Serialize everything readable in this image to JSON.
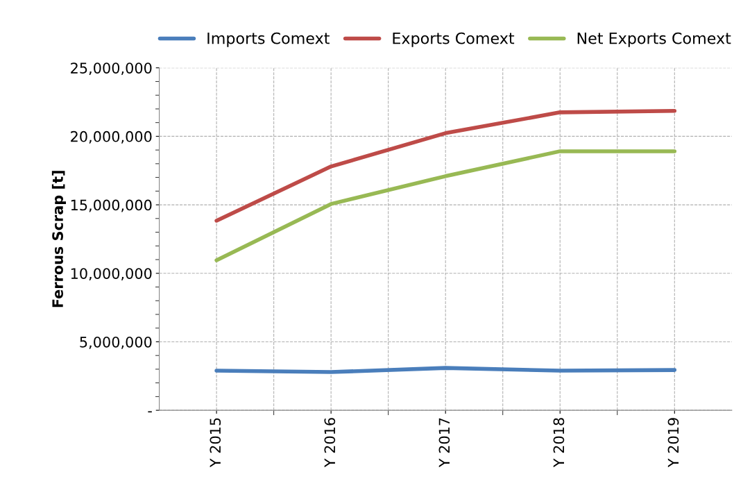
{
  "chart_data": {
    "type": "line",
    "ylabel": "Ferrous Scrap [t]",
    "categories": [
      "Y 2015",
      "Y 2016",
      "Y 2017",
      "Y 2018",
      "Y 2019"
    ],
    "series": [
      {
        "name": "Imports Comext",
        "color": "#4a7ebb",
        "values": [
          2890000,
          2790000,
          3090000,
          2890000,
          2940000
        ]
      },
      {
        "name": "Exports Comext",
        "color": "#be4b48",
        "values": [
          13840000,
          17800000,
          20230000,
          21750000,
          21860000
        ]
      },
      {
        "name": "Net Exports Comext",
        "color": "#98b954",
        "values": [
          10950000,
          15060000,
          17090000,
          18910000,
          18910000
        ]
      }
    ],
    "ylim": [
      0,
      25000000
    ],
    "yticks": [
      {
        "value": 0,
        "label": "-"
      },
      {
        "value": 5000000,
        "label": "5,000,000"
      },
      {
        "value": 10000000,
        "label": "10,000,000"
      },
      {
        "value": 15000000,
        "label": "15,000,000"
      },
      {
        "value": 20000000,
        "label": "20,000,000"
      },
      {
        "value": 25000000,
        "label": "25,000,000"
      }
    ],
    "grid": true,
    "legend": "top",
    "marker": "none",
    "line_style": "solid"
  }
}
